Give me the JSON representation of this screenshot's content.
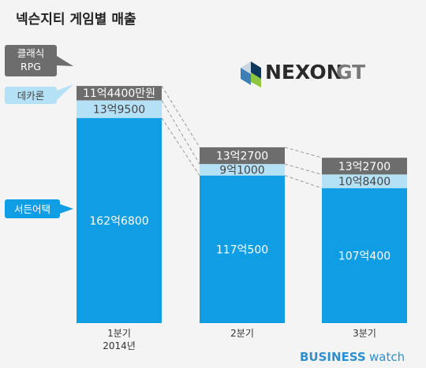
{
  "title": "넥슨지티 게임별 매출",
  "brand": {
    "name": "NEXON",
    "suffix": "GT"
  },
  "credit": {
    "bold": "BUSINESS",
    "light": "watch"
  },
  "chart_data": {
    "type": "bar",
    "stacked": true,
    "categories": [
      "1분기",
      "2분기",
      "3분기"
    ],
    "category_sublabels": [
      "2014년",
      "",
      ""
    ],
    "unit": "억원",
    "series": [
      {
        "name": "서든어택",
        "values": [
          162.68,
          117.05,
          107.04
        ],
        "labels": [
          "162억6800",
          "117억500",
          "107억400"
        ],
        "color": "#0f9ee3",
        "text_color": "#ffffff"
      },
      {
        "name": "데카론",
        "values": [
          13.95,
          9.1,
          10.84
        ],
        "labels": [
          "13억9500",
          "9억1000",
          "10억8400"
        ],
        "color": "#b5e1f7",
        "text_color": "#444444"
      },
      {
        "name": "클래식 RPG",
        "values": [
          11.44,
          13.27,
          13.27
        ],
        "labels": [
          "11억4400만원",
          "13억2700",
          "13억2700"
        ],
        "color": "#6d6d6d",
        "text_color": "#ffffff"
      }
    ],
    "legend": [
      {
        "lines": [
          "클래식",
          "RPG"
        ],
        "color": "#6d6d6d",
        "text_color": "#ffffff"
      },
      {
        "lines": [
          "데카론"
        ],
        "color": "#b5e1f7",
        "text_color": "#444444"
      },
      {
        "lines": [
          "서든어택"
        ],
        "color": "#0f9ee3",
        "text_color": "#ffffff"
      }
    ]
  }
}
